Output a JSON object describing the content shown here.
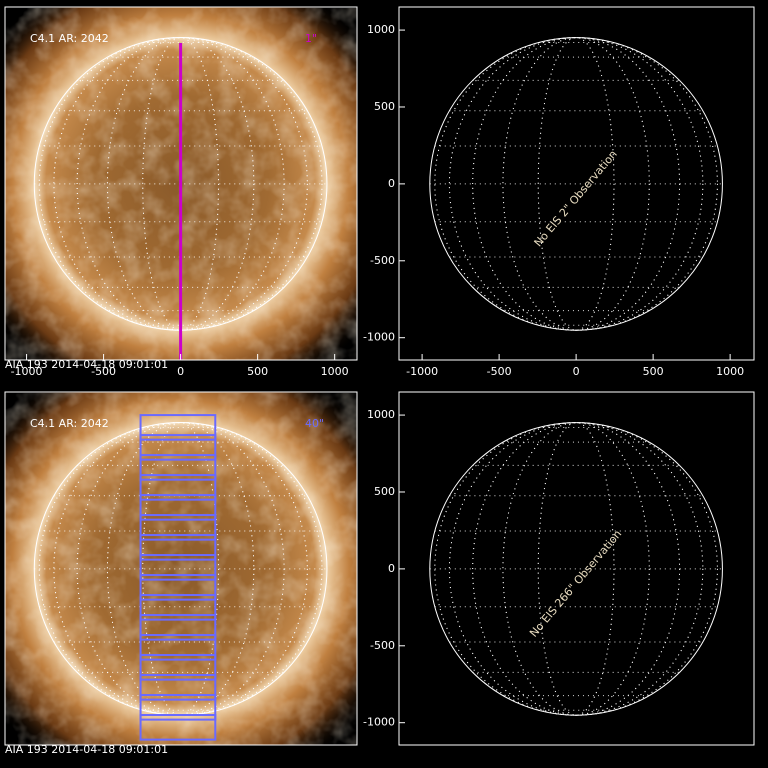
{
  "chart_data": [
    {
      "type": "solar-map",
      "image": true,
      "label": "C4.1 AR: 2042",
      "slit_label": "1\"",
      "slit_color": "#cc00cc",
      "slit_x": 0,
      "disk_radius": 950,
      "xlim": [
        -1140,
        1145
      ],
      "ylim": [
        -1145,
        1150
      ],
      "xticks": [
        -1000,
        -500,
        0,
        500,
        1000
      ],
      "footer": "AIA 193  2014-04-18 09:01:01"
    },
    {
      "type": "solar-map",
      "image": false,
      "message": "No EIS 2\" Observation",
      "disk_radius": 950,
      "xlim": [
        -1150,
        1155
      ],
      "ylim": [
        -1145,
        1150
      ],
      "xticks": [
        -1000,
        -500,
        0,
        500,
        1000
      ],
      "yticks": [
        -1000,
        -500,
        0,
        500,
        1000
      ]
    },
    {
      "type": "solar-map",
      "image": true,
      "label": "C4.1 AR: 2042",
      "slit_label": "40\"",
      "slit_color": "#6a6aff",
      "disk_radius": 950,
      "raster_x": [
        -260,
        225
      ],
      "raster_y": [
        920,
        790,
        660,
        530,
        400,
        270,
        140,
        10,
        -120,
        -250,
        -380,
        -510,
        -640,
        -770,
        -900,
        -1030
      ],
      "raster_height": 160,
      "xlim": [
        -1140,
        1145
      ],
      "ylim": [
        -1145,
        1150
      ],
      "footer": "AIA 193  2014-04-18 09:01:01"
    },
    {
      "type": "solar-map",
      "image": false,
      "message": "No EIS 266\" Observation",
      "disk_radius": 950,
      "xlim": [
        -1150,
        1155
      ],
      "ylim": [
        -1145,
        1150
      ],
      "yticks": [
        -1000,
        -500,
        0,
        500,
        1000
      ]
    }
  ]
}
